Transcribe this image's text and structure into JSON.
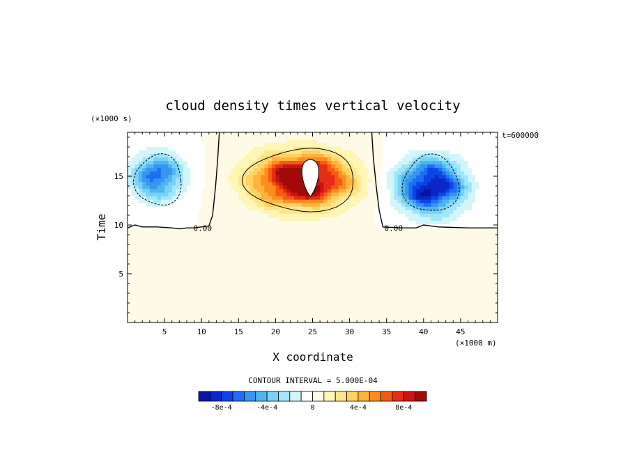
{
  "chart_data": {
    "type": "heatmap",
    "title": "cloud density times vertical velocity",
    "xlabel": "X coordinate",
    "ylabel": "Time",
    "x_unit_label": "(×1000 m)",
    "y_unit_label": "(×1000 s)",
    "xlim": [
      0,
      50
    ],
    "ylim": [
      0,
      19.5
    ],
    "xticks": [
      5,
      10,
      15,
      20,
      25,
      30,
      35,
      40,
      45
    ],
    "yticks": [
      5,
      10,
      15
    ],
    "annotation": "t=600000",
    "zero_contour_labels": [
      "0.00",
      "0.00"
    ],
    "contour_interval_text": "CONTOUR INTERVAL = 5.000E-04",
    "colorbar": {
      "colors": [
        "#0a14a0",
        "#0a28c8",
        "#0a46e6",
        "#1e6ef5",
        "#3796f0",
        "#50b4f0",
        "#78d2f5",
        "#a0e6fa",
        "#d2f5fa",
        "#ffffff",
        "#fffae6",
        "#fff5b4",
        "#ffe68c",
        "#ffd264",
        "#ffb43c",
        "#ff8c1e",
        "#f55a14",
        "#e62d14",
        "#c81414",
        "#a00a0a"
      ],
      "min": -0.001,
      "max": 0.001,
      "tick_labels": [
        "-8e-4",
        "-4e-4",
        "0",
        "4e-4",
        "8e-4"
      ],
      "tick_values": [
        -0.0008,
        -0.0004,
        0,
        0.0004,
        0.0008
      ]
    },
    "features": [
      {
        "name": "negative-left",
        "x": 4,
        "y": 15,
        "sx": 3.2,
        "sy": 2.2,
        "amp": -0.00068
      },
      {
        "name": "negative-right",
        "x": 41,
        "y": 14,
        "sx": 4.2,
        "sy": 2.6,
        "amp": -0.00098
      },
      {
        "name": "positive-center",
        "x": 23.5,
        "y": 14.6,
        "sx": 6.2,
        "sy": 2.6,
        "amp": 0.00115
      },
      {
        "name": "missing-data-hole",
        "x": 24.7,
        "y": 14.8,
        "rx": 1.3,
        "ry": 1.9
      }
    ],
    "grid": false
  }
}
